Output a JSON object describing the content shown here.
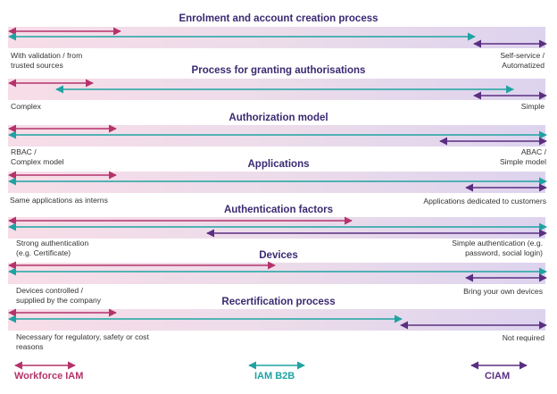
{
  "colors": {
    "workforce": "#b5336b",
    "b2b": "#1fa3a2",
    "ciam": "#5a2f82"
  },
  "sections": [
    {
      "title": "Enrolment and account creation process",
      "left_label": "With validation / from\ntrusted sources",
      "right_label": "Self-service /\nAutomatized"
    },
    {
      "title": "Process for granting authorisations",
      "left_label": "Complex",
      "right_label": "Simple"
    },
    {
      "title": "Authorization model",
      "left_label": "RBAC /\nComplex model",
      "right_label": "ABAC /\nSimple model"
    },
    {
      "title": "Applications",
      "left_label": "Same applications as interns",
      "right_label": "Applications dedicated to customers"
    },
    {
      "title": "Authentication factors",
      "left_label": "Strong authentication\n(e.g. Certificate)",
      "right_label": "Simple authentication (e.g.\npassword, social login)"
    },
    {
      "title": "Devices",
      "left_label": "Devices controlled /\nsupplied by the company",
      "right_label": "Bring your own devices"
    },
    {
      "title": "Recertification process",
      "left_label": "Necessary for regulatory, safety or cost\nreasons",
      "right_label": "Not required"
    }
  ],
  "legend": [
    {
      "label": "Workforce IAM",
      "color": "#b5336b"
    },
    {
      "label": "IAM B2B",
      "color": "#1fa3a2"
    },
    {
      "label": "CIAM",
      "color": "#5a2f82"
    }
  ]
}
